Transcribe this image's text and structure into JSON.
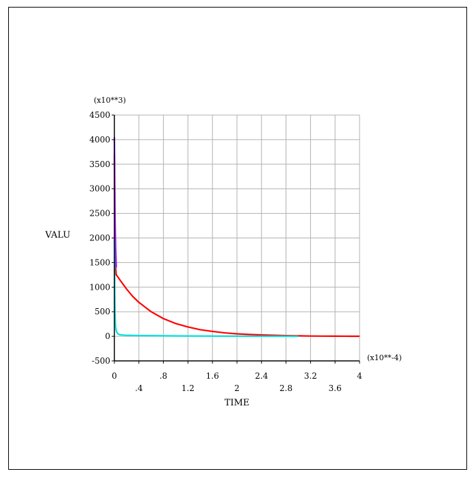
{
  "chart_data": {
    "type": "line",
    "xlabel": "TIME",
    "ylabel": "VALU",
    "x_multiplier_label": "(x10**-4)",
    "y_multiplier_label": "(x10**3)",
    "xlim": [
      0,
      4
    ],
    "ylim": [
      -500,
      4500
    ],
    "x_ticks_upper": [
      "0",
      ".8",
      "1.6",
      "2.4",
      "3.2",
      "4"
    ],
    "x_ticks_lower": [
      ".4",
      "1.2",
      "2",
      "2.8",
      "3.6"
    ],
    "y_ticks": [
      "4500",
      "4000",
      "3500",
      "3000",
      "2500",
      "2000",
      "1500",
      "1000",
      "500",
      "0",
      "-500"
    ],
    "x_grid_values": [
      0,
      0.4,
      0.8,
      1.2,
      1.6,
      2.0,
      2.4,
      2.8,
      3.2,
      3.6,
      4.0
    ],
    "y_grid_values": [
      -500,
      0,
      500,
      1000,
      1500,
      2000,
      2500,
      3000,
      3500,
      4000,
      4500
    ],
    "grid": true,
    "colors": {
      "background": "#ffffff",
      "grid": "#b0b0b0",
      "axes": "#000000"
    },
    "series": [
      {
        "color": "#ff0000",
        "x": [
          0,
          0.005,
          0.01,
          0.02,
          0.03,
          0.05,
          0.1,
          0.2,
          0.3,
          0.4,
          0.6,
          0.8,
          1.0,
          1.2,
          1.4,
          1.6,
          1.8,
          2.0,
          2.2,
          2.4,
          2.6,
          2.8,
          3.0,
          3.2,
          3.4,
          3.6,
          3.8,
          4.0
        ],
        "y": [
          3700,
          2600,
          1900,
          1400,
          1250,
          1220,
          1130,
          960,
          810,
          690,
          500,
          360,
          260,
          190,
          135,
          100,
          70,
          50,
          38,
          28,
          20,
          14,
          10,
          6,
          4,
          3,
          2,
          1
        ]
      },
      {
        "color": "#a000ff",
        "x": [
          0,
          0.005,
          0.01,
          0.02,
          0.03
        ],
        "y": [
          4050,
          3200,
          2400,
          1800,
          1400
        ]
      },
      {
        "color": "#00e0e0",
        "x": [
          0,
          0.003,
          0.006,
          0.01,
          0.015,
          0.02,
          0.03,
          0.05,
          0.08,
          0.1,
          0.2,
          0.4,
          0.8,
          1.2,
          1.6,
          2.0,
          2.4,
          2.8,
          3.0
        ],
        "y": [
          1950,
          1400,
          900,
          500,
          320,
          200,
          110,
          60,
          35,
          30,
          20,
          15,
          10,
          7,
          5,
          3,
          2,
          1,
          0
        ]
      }
    ]
  }
}
